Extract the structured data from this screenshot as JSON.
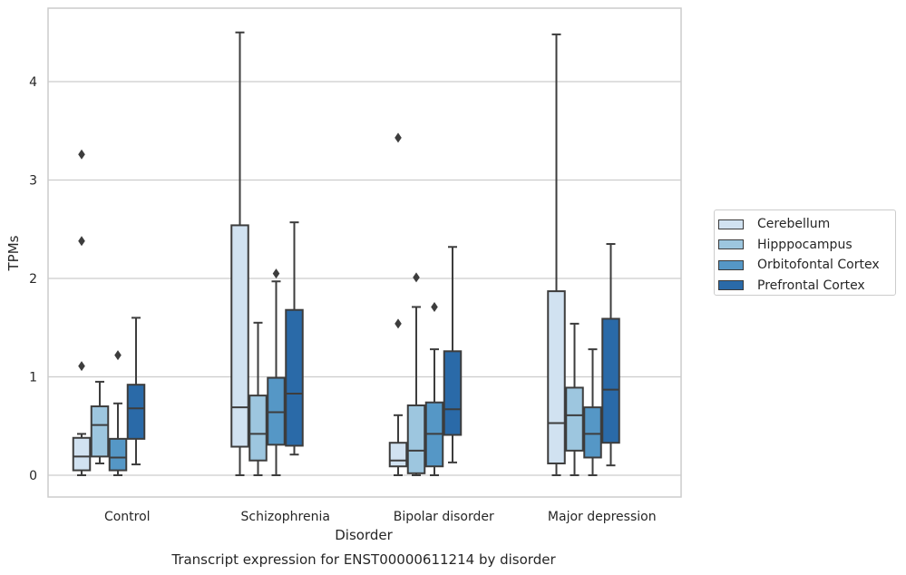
{
  "chart_data": {
    "type": "boxplot",
    "title": "Transcript expression for ENST00000611214 by disorder",
    "xlabel": "Disorder",
    "ylabel": "TPMs",
    "ylim": [
      -0.22,
      4.68
    ],
    "yticks": [
      0,
      1,
      2,
      3,
      4
    ],
    "grid": "horizontal",
    "legend_position": "right",
    "categories": [
      "Control",
      "Schizophrenia",
      "Bipolar disorder",
      "Major depression"
    ],
    "series": [
      {
        "name": "Cerebellum",
        "color": "#d1e2f1",
        "boxes": [
          {
            "whislo": 0.0,
            "q1": 0.05,
            "med": 0.19,
            "q3": 0.38,
            "whishi": 0.42,
            "fliers": [
              1.11,
              2.38,
              3.26
            ]
          },
          {
            "whislo": 0.0,
            "q1": 0.29,
            "med": 0.69,
            "q3": 2.54,
            "whishi": 4.5,
            "fliers": []
          },
          {
            "whislo": 0.0,
            "q1": 0.09,
            "med": 0.15,
            "q3": 0.33,
            "whishi": 0.61,
            "fliers": [
              1.54,
              3.43
            ]
          },
          {
            "whislo": 0.0,
            "q1": 0.12,
            "med": 0.53,
            "q3": 1.87,
            "whishi": 4.48,
            "fliers": []
          }
        ]
      },
      {
        "name": "Hipppocampus",
        "color": "#9dc6df",
        "boxes": [
          {
            "whislo": 0.12,
            "q1": 0.19,
            "med": 0.51,
            "q3": 0.7,
            "whishi": 0.95,
            "fliers": []
          },
          {
            "whislo": 0.0,
            "q1": 0.15,
            "med": 0.42,
            "q3": 0.81,
            "whishi": 1.55,
            "fliers": []
          },
          {
            "whislo": 0.0,
            "q1": 0.02,
            "med": 0.25,
            "q3": 0.71,
            "whishi": 1.71,
            "fliers": [
              2.01
            ]
          },
          {
            "whislo": 0.0,
            "q1": 0.25,
            "med": 0.61,
            "q3": 0.89,
            "whishi": 1.54,
            "fliers": []
          }
        ]
      },
      {
        "name": "Orbitofontal Cortex",
        "color": "#5597c6",
        "boxes": [
          {
            "whislo": 0.0,
            "q1": 0.05,
            "med": 0.18,
            "q3": 0.37,
            "whishi": 0.73,
            "fliers": [
              1.22
            ]
          },
          {
            "whislo": 0.0,
            "q1": 0.31,
            "med": 0.64,
            "q3": 0.99,
            "whishi": 1.97,
            "fliers": [
              2.05
            ]
          },
          {
            "whislo": 0.0,
            "q1": 0.09,
            "med": 0.42,
            "q3": 0.74,
            "whishi": 1.28,
            "fliers": [
              1.71
            ]
          },
          {
            "whislo": 0.0,
            "q1": 0.18,
            "med": 0.42,
            "q3": 0.69,
            "whishi": 1.28,
            "fliers": []
          }
        ]
      },
      {
        "name": "Prefrontal Cortex",
        "color": "#2a6aa8",
        "boxes": [
          {
            "whislo": 0.11,
            "q1": 0.37,
            "med": 0.68,
            "q3": 0.92,
            "whishi": 1.6,
            "fliers": []
          },
          {
            "whislo": 0.21,
            "q1": 0.3,
            "med": 0.83,
            "q3": 1.68,
            "whishi": 2.57,
            "fliers": []
          },
          {
            "whislo": 0.13,
            "q1": 0.41,
            "med": 0.67,
            "q3": 1.26,
            "whishi": 2.32,
            "fliers": []
          },
          {
            "whislo": 0.1,
            "q1": 0.33,
            "med": 0.87,
            "q3": 1.59,
            "whishi": 2.35,
            "fliers": []
          }
        ]
      }
    ]
  }
}
